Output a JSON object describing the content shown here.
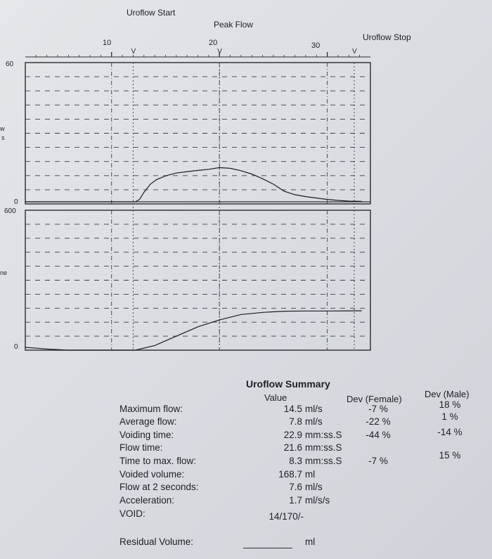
{
  "markers": {
    "start": "Uroflow Start",
    "peak": "Peak Flow",
    "stop": "Uroflow Stop",
    "v_label": "V"
  },
  "top_axis": {
    "ticks": [
      "10",
      "20",
      "30"
    ]
  },
  "left_labels": {
    "flow_max": "60",
    "flow_zero": "0",
    "volume_max": "600",
    "volume_zero": "0",
    "flow_cut": "w",
    "flow_cut2": "s",
    "volume_cut": "ne"
  },
  "chart_data": [
    {
      "type": "line",
      "title": "",
      "xlabel": "",
      "ylabel": "",
      "xlim": [
        2,
        34
      ],
      "ylim": [
        0,
        60
      ],
      "x_ticks": [
        10,
        20,
        30
      ],
      "markers_x": {
        "Uroflow Start": 12,
        "Peak Flow": 20,
        "Uroflow Stop": 32.5
      },
      "series": [
        {
          "x": [
            2,
            11,
            12.2,
            12.6,
            13,
            13.6,
            14.2,
            15,
            16,
            17,
            18,
            19,
            20,
            21,
            22,
            23,
            24,
            25,
            26,
            27,
            28,
            29,
            30,
            31,
            32,
            33.2
          ],
          "values": [
            0,
            0,
            0,
            1,
            4,
            7.5,
            9.5,
            11,
            12.2,
            12.8,
            13.3,
            13.8,
            14.5,
            14.2,
            13.2,
            11.8,
            9.8,
            7.5,
            4.5,
            3,
            2.2,
            1.6,
            1,
            0.6,
            0.3,
            0.2
          ]
        }
      ]
    },
    {
      "type": "line",
      "title": "",
      "xlabel": "",
      "ylabel": "",
      "xlim": [
        2,
        34
      ],
      "ylim": [
        0,
        600
      ],
      "x_ticks": [
        10,
        20,
        30
      ],
      "series": [
        {
          "x": [
            2,
            4,
            6,
            11,
            12.2,
            14,
            16,
            18,
            20,
            22,
            24,
            26,
            28,
            30,
            32,
            33.2
          ],
          "values": [
            12,
            5,
            0,
            0,
            0,
            20,
            60,
            100,
            130,
            153,
            162,
            167,
            168,
            168,
            168.5,
            168.7
          ]
        }
      ]
    }
  ],
  "summary": {
    "title": "Uroflow Summary",
    "col_value": "Value",
    "col_dev_female": "Dev (Female)",
    "col_dev_male": "Dev (Male)",
    "rows": [
      {
        "label": "Maximum flow:",
        "value": "14.5",
        "unit": "ml/s",
        "dev_female": "-7 %",
        "dev_male": "18 %"
      },
      {
        "label": "Average flow:",
        "value": "7.8",
        "unit": "ml/s",
        "dev_female": "-22 %",
        "dev_male": "1 %"
      },
      {
        "label": "Voiding time:",
        "value": "22.9",
        "unit": "mm:ss.S",
        "dev_female": "-44 %",
        "dev_male": "-14 %"
      },
      {
        "label": "Flow time:",
        "value": "21.6",
        "unit": "mm:ss.S",
        "dev_female": "",
        "dev_male": ""
      },
      {
        "label": "Time to max. flow:",
        "value": "8.3",
        "unit": "mm:ss.S",
        "dev_female": "-7 %",
        "dev_male": "15 %"
      },
      {
        "label": "Voided volume:",
        "value": "168.7",
        "unit": "ml",
        "dev_female": "",
        "dev_male": ""
      },
      {
        "label": "Flow at 2 seconds:",
        "value": "7.6",
        "unit": "ml/s",
        "dev_female": "",
        "dev_male": ""
      },
      {
        "label": "Acceleration:",
        "value": "1.7",
        "unit": "ml/s/s",
        "dev_female": "",
        "dev_male": ""
      },
      {
        "label": "VOID:",
        "value": "14/170/-",
        "unit": "",
        "dev_female": "",
        "dev_male": ""
      }
    ],
    "residual": {
      "label": "Residual Volume:",
      "unit": "ml"
    }
  }
}
